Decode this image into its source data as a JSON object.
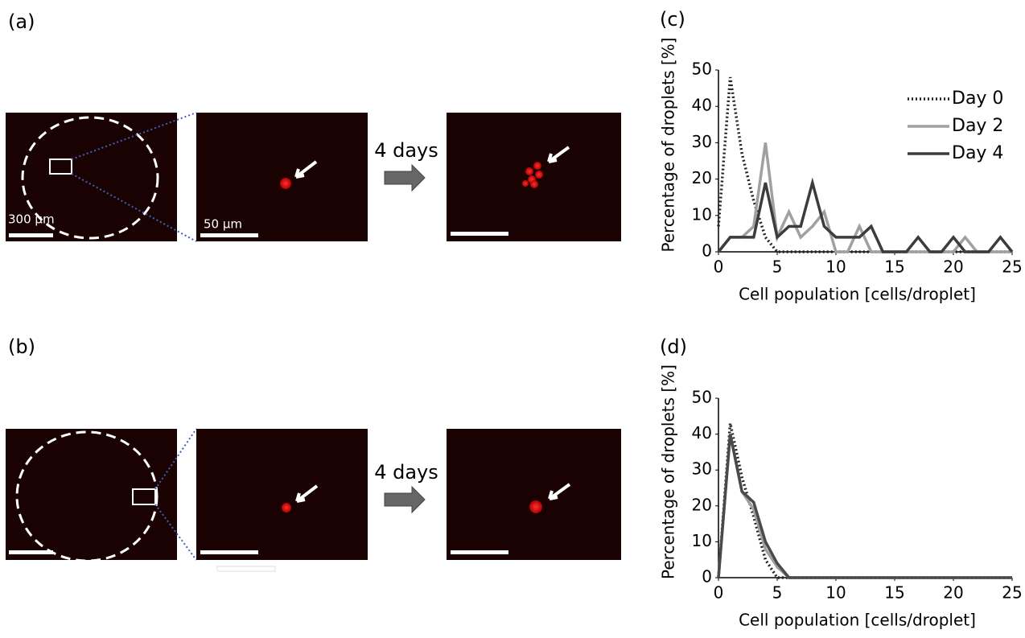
{
  "panels": {
    "a": "(a)",
    "b": "(b)",
    "arrow_a": "4 days",
    "arrow_b": "4 days",
    "scale_large": "300 µm",
    "scale_small": "50 µm"
  },
  "chart_data": [
    {
      "type": "line",
      "label": "(c)",
      "x_label": "Cell population [cells/droplet]",
      "y_label": "Percentage of droplets [%]",
      "x": [
        0,
        1,
        2,
        3,
        4,
        5,
        6,
        7,
        8,
        9,
        10,
        11,
        12,
        13,
        14,
        15,
        16,
        17,
        18,
        19,
        20,
        21,
        22,
        23,
        24,
        25
      ],
      "xlim": [
        0,
        25
      ],
      "xticks": [
        0,
        5,
        10,
        15,
        20,
        25
      ],
      "ylim": [
        0,
        50
      ],
      "yticks": [
        0,
        10,
        20,
        30,
        40,
        50
      ],
      "grid": false,
      "legend": "upper right",
      "series": [
        {
          "name": "Day 0",
          "color": "#222222",
          "style": "dotted",
          "values": [
            7,
            48,
            27,
            14,
            4,
            0,
            0,
            0,
            0,
            0,
            0,
            0,
            0,
            0,
            0,
            0,
            0,
            0,
            0,
            0,
            0,
            0,
            0,
            0,
            0,
            0
          ]
        },
        {
          "name": "Day 2",
          "color": "#a0a0a0",
          "style": "solid",
          "values": [
            0,
            4,
            4,
            7,
            30,
            4,
            11,
            4,
            7,
            11,
            0,
            0,
            7,
            0,
            0,
            0,
            0,
            0,
            0,
            0,
            0,
            4,
            0,
            0,
            0,
            0
          ]
        },
        {
          "name": "Day 4",
          "color": "#3c3c3c",
          "style": "solid",
          "values": [
            0,
            4,
            4,
            4,
            19,
            4,
            7,
            7,
            19,
            7,
            4,
            4,
            4,
            7,
            0,
            0,
            0,
            4,
            0,
            0,
            4,
            0,
            0,
            0,
            4,
            0
          ]
        }
      ]
    },
    {
      "type": "line",
      "label": "(d)",
      "x_label": "Cell population [cells/droplet]",
      "y_label": "Percentage of droplets [%]",
      "x": [
        0,
        1,
        2,
        3,
        4,
        5,
        6,
        7,
        8,
        9,
        10,
        11,
        12,
        13,
        14,
        15,
        16,
        17,
        18,
        19,
        20,
        21,
        22,
        23,
        24,
        25
      ],
      "xlim": [
        0,
        25
      ],
      "xticks": [
        0,
        5,
        10,
        15,
        20,
        25
      ],
      "ylim": [
        0,
        50
      ],
      "yticks": [
        0,
        10,
        20,
        30,
        40,
        50
      ],
      "grid": false,
      "series": [
        {
          "color": "#222222",
          "style": "dotted",
          "values": [
            0,
            43,
            28,
            17,
            5,
            0,
            0,
            0,
            0,
            0,
            0,
            0,
            0,
            0,
            0,
            0,
            0,
            0,
            0,
            0,
            0,
            0,
            0,
            0,
            0,
            0
          ]
        },
        {
          "color": "#a0a0a0",
          "style": "solid",
          "values": [
            0,
            40,
            24,
            19,
            8,
            3,
            0,
            0,
            0,
            0,
            0,
            0,
            0,
            0,
            0,
            0,
            0,
            0,
            0,
            0,
            0,
            0,
            0,
            0,
            0,
            0
          ]
        },
        {
          "color": "#4a4a4a",
          "style": "solid",
          "values": [
            0,
            40,
            24,
            21,
            10,
            4,
            0,
            0,
            0,
            0,
            0,
            0,
            0,
            0,
            0,
            0,
            0,
            0,
            0,
            0,
            0,
            0,
            0,
            0,
            0,
            0
          ]
        }
      ]
    }
  ]
}
